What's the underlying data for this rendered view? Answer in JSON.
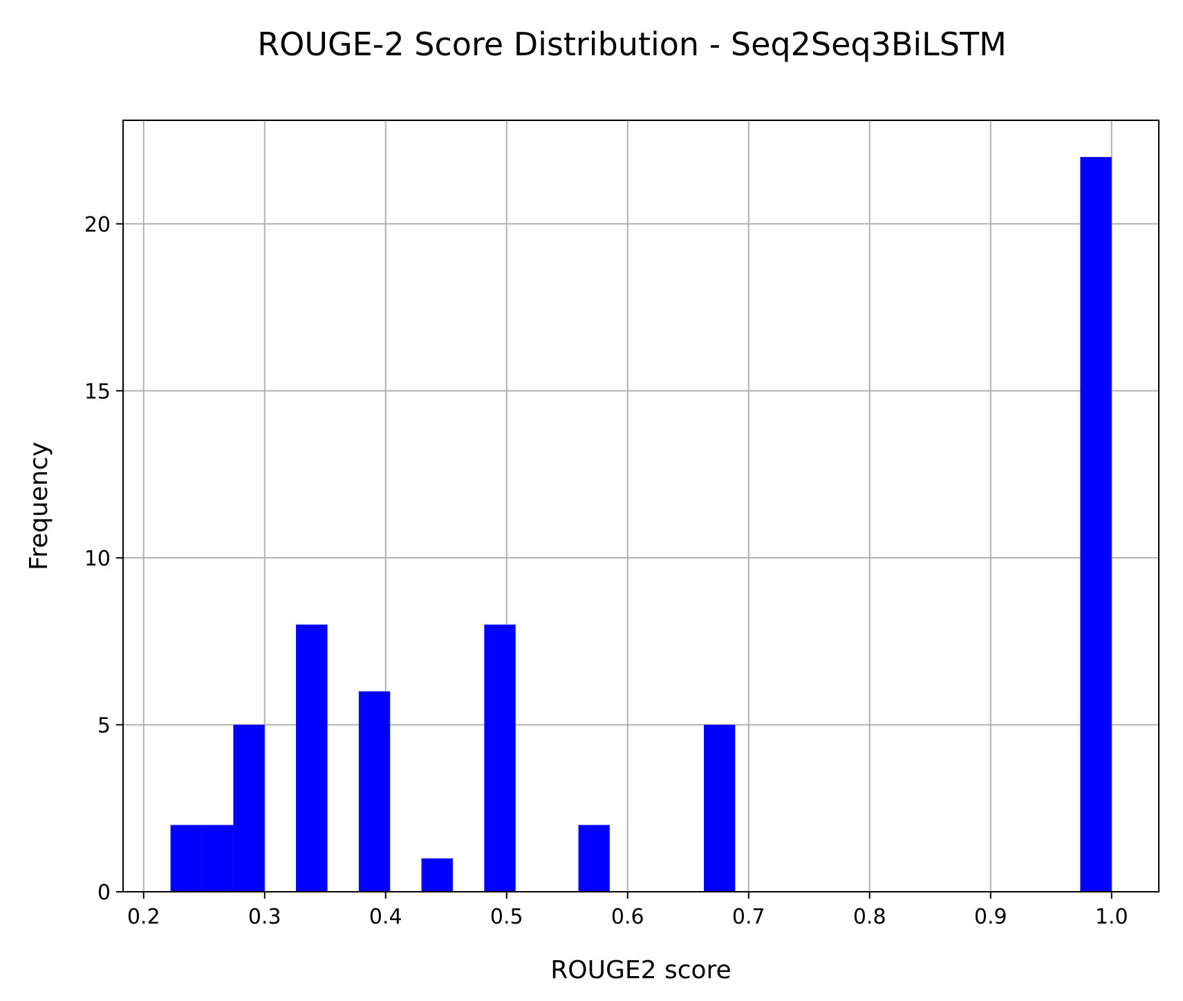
{
  "chart_data": {
    "type": "bar",
    "title": "ROUGE-2 Score Distribution - Seq2Seq3BiLSTM",
    "xlabel": "ROUGE2 score",
    "ylabel": "Frequency",
    "xlim": [
      0.183,
      1.039
    ],
    "ylim": [
      0,
      23.1
    ],
    "xticks": [
      0.2,
      0.3,
      0.4,
      0.5,
      0.6,
      0.7,
      0.8,
      0.9,
      1.0
    ],
    "xtick_labels": [
      "0.2",
      "0.3",
      "0.4",
      "0.5",
      "0.6",
      "0.7",
      "0.8",
      "0.9",
      "1.0"
    ],
    "yticks": [
      0,
      5,
      10,
      15,
      20
    ],
    "ytick_labels": [
      "0",
      "5",
      "10",
      "15",
      "20"
    ],
    "grid": true,
    "bar_color": "#0000ff",
    "bins": [
      {
        "x0": 0.2222,
        "x1": 0.2481,
        "count": 2
      },
      {
        "x0": 0.2481,
        "x1": 0.2741,
        "count": 2
      },
      {
        "x0": 0.2741,
        "x1": 0.3,
        "count": 5
      },
      {
        "x0": 0.3259,
        "x1": 0.3519,
        "count": 8
      },
      {
        "x0": 0.3778,
        "x1": 0.4037,
        "count": 6
      },
      {
        "x0": 0.4296,
        "x1": 0.4556,
        "count": 1
      },
      {
        "x0": 0.4815,
        "x1": 0.5074,
        "count": 8
      },
      {
        "x0": 0.5593,
        "x1": 0.5852,
        "count": 2
      },
      {
        "x0": 0.663,
        "x1": 0.6889,
        "count": 5
      },
      {
        "x0": 0.9741,
        "x1": 1.0,
        "count": 22
      }
    ]
  }
}
